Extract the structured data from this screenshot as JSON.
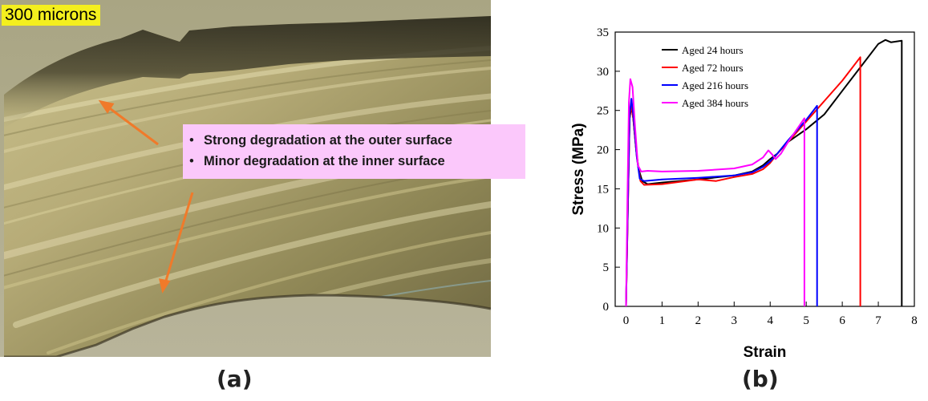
{
  "figure": {
    "panel_a_label": "(a)",
    "panel_b_label": "(b)"
  },
  "micrograph": {
    "scale_label": "300 microns",
    "scale_label_color": "#f4ef1e",
    "callout_color": "#fbc8fb",
    "arrow_color": "#f07a2a",
    "callout_items": [
      "Strong degradation at the outer surface",
      "Minor degradation at the inner surface"
    ]
  },
  "chart_data": {
    "type": "line",
    "title": "",
    "xlabel": "Strain",
    "ylabel": "Stress (MPa)",
    "xlim": [
      -0.3,
      8
    ],
    "ylim": [
      0,
      35
    ],
    "xticks": [
      0,
      1,
      2,
      3,
      4,
      5,
      6,
      7,
      8
    ],
    "yticks": [
      0,
      5,
      10,
      15,
      20,
      25,
      30,
      35
    ],
    "grid": false,
    "legend_position": "top-left",
    "series": [
      {
        "name": "Aged 24 hours",
        "color": "#000000",
        "points": [
          [
            0,
            0
          ],
          [
            0.05,
            12
          ],
          [
            0.1,
            24
          ],
          [
            0.15,
            25.5
          ],
          [
            0.2,
            24
          ],
          [
            0.28,
            20
          ],
          [
            0.35,
            17.5
          ],
          [
            0.45,
            16
          ],
          [
            0.6,
            15.6
          ],
          [
            1,
            15.8
          ],
          [
            2,
            16.2
          ],
          [
            3,
            16.7
          ],
          [
            3.5,
            17.2
          ],
          [
            3.8,
            18
          ],
          [
            4,
            18.8
          ],
          [
            4.2,
            19.5
          ],
          [
            4.5,
            21
          ],
          [
            5,
            22.6
          ],
          [
            5.5,
            24.5
          ],
          [
            6,
            27.5
          ],
          [
            6.5,
            30.5
          ],
          [
            7,
            33.5
          ],
          [
            7.2,
            34
          ],
          [
            7.35,
            33.7
          ],
          [
            7.5,
            33.8
          ],
          [
            7.65,
            33.9
          ],
          [
            7.65,
            0
          ]
        ]
      },
      {
        "name": "Aged 72 hours",
        "color": "#ff0000",
        "points": [
          [
            0,
            0
          ],
          [
            0.05,
            12
          ],
          [
            0.1,
            24
          ],
          [
            0.14,
            25.8
          ],
          [
            0.2,
            24
          ],
          [
            0.3,
            19
          ],
          [
            0.4,
            16
          ],
          [
            0.5,
            15.5
          ],
          [
            1,
            15.6
          ],
          [
            2,
            16.2
          ],
          [
            2.5,
            16
          ],
          [
            3,
            16.5
          ],
          [
            3.5,
            16.9
          ],
          [
            3.8,
            17.5
          ],
          [
            4,
            18.3
          ],
          [
            4.2,
            19.5
          ],
          [
            4.5,
            21
          ],
          [
            5,
            23.6
          ],
          [
            5.5,
            26.2
          ],
          [
            6,
            28.8
          ],
          [
            6.5,
            31.8
          ],
          [
            6.5,
            0
          ]
        ]
      },
      {
        "name": "Aged 216 hours",
        "color": "#0000ff",
        "points": [
          [
            0,
            0
          ],
          [
            0.05,
            13
          ],
          [
            0.1,
            24.5
          ],
          [
            0.15,
            26.5
          ],
          [
            0.2,
            24.5
          ],
          [
            0.3,
            19
          ],
          [
            0.38,
            16.3
          ],
          [
            0.5,
            16
          ],
          [
            1,
            16.2
          ],
          [
            2,
            16.4
          ],
          [
            3,
            16.7
          ],
          [
            3.5,
            17.1
          ],
          [
            3.8,
            17.8
          ],
          [
            4,
            18.5
          ],
          [
            4.2,
            19.5
          ],
          [
            4.5,
            21.2
          ],
          [
            5,
            23.8
          ],
          [
            5.3,
            25.6
          ],
          [
            5.3,
            0
          ]
        ]
      },
      {
        "name": "Aged 384 hours",
        "color": "#ff00ff",
        "points": [
          [
            0,
            0
          ],
          [
            0.04,
            14
          ],
          [
            0.08,
            26
          ],
          [
            0.12,
            29
          ],
          [
            0.18,
            28
          ],
          [
            0.25,
            23
          ],
          [
            0.33,
            18
          ],
          [
            0.42,
            17.2
          ],
          [
            0.6,
            17.3
          ],
          [
            1,
            17.2
          ],
          [
            2,
            17.3
          ],
          [
            3,
            17.6
          ],
          [
            3.5,
            18.1
          ],
          [
            3.8,
            19
          ],
          [
            3.95,
            19.9
          ],
          [
            4.05,
            19.4
          ],
          [
            4.15,
            18.8
          ],
          [
            4.3,
            19.5
          ],
          [
            4.5,
            21
          ],
          [
            4.8,
            23
          ],
          [
            4.95,
            24
          ],
          [
            4.95,
            0
          ]
        ]
      }
    ]
  }
}
